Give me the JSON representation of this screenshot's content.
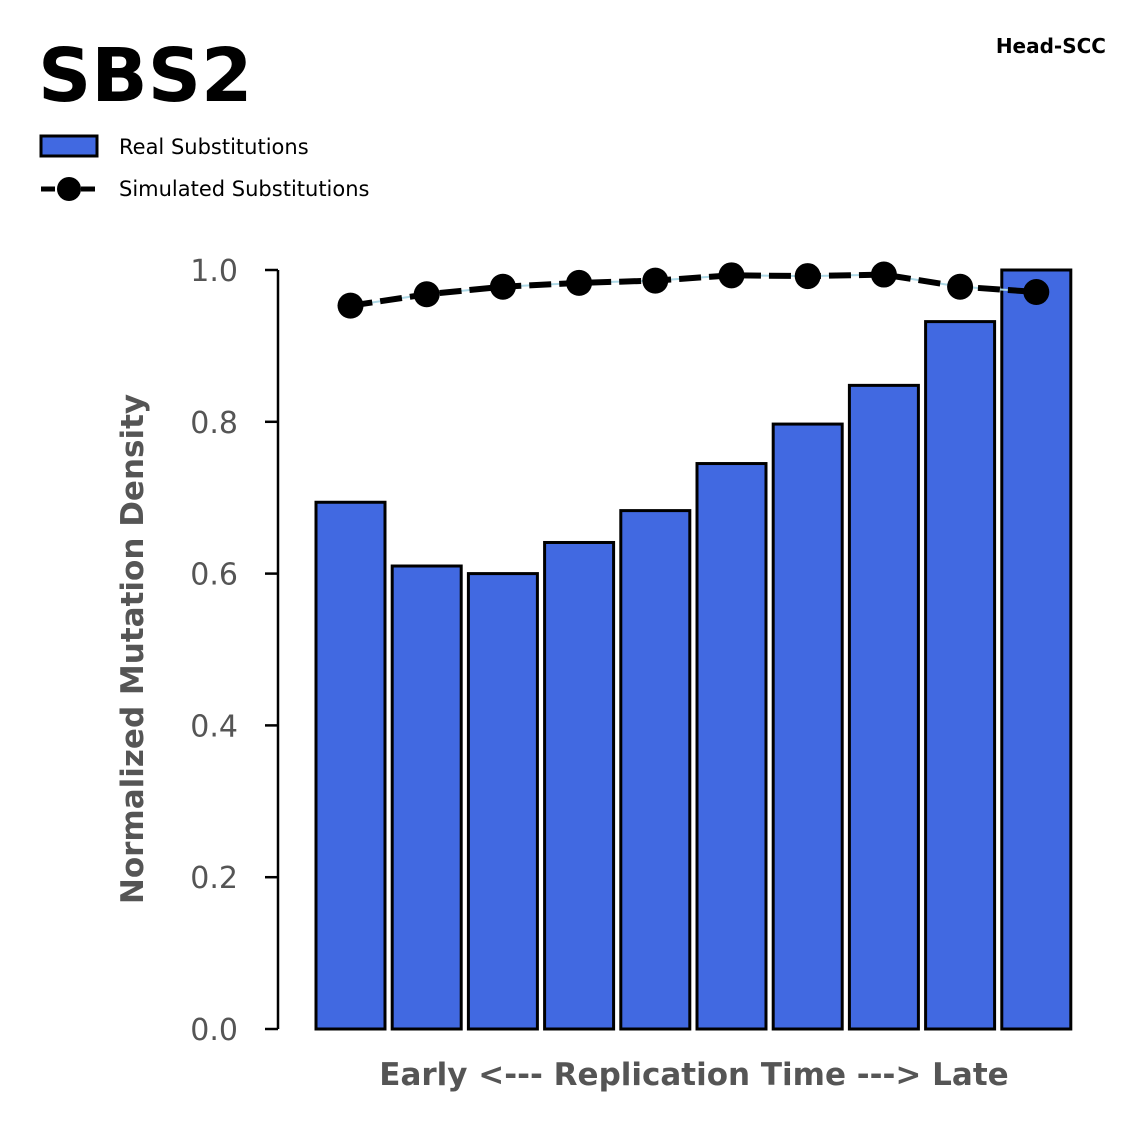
{
  "chart_data": {
    "type": "bar",
    "title": "SBS2",
    "subtitle": "Head-SCC",
    "xlabel": "Early <--- Replication Time ---> Late",
    "ylabel": "Normalized Mutation Density",
    "ylim": [
      0,
      1.0
    ],
    "yticks": [
      "0.0",
      "0.2",
      "0.4",
      "0.6",
      "0.8",
      "1.0"
    ],
    "grid": false,
    "legend_position": "top-left",
    "series": [
      {
        "name": "Real Substitutions",
        "kind": "bar",
        "color": "#4169e1",
        "values": [
          0.694,
          0.61,
          0.6,
          0.641,
          0.683,
          0.745,
          0.797,
          0.848,
          0.932,
          1.0
        ]
      },
      {
        "name": "Simulated Substitutions",
        "kind": "line",
        "color": "#000000",
        "values": [
          0.953,
          0.968,
          0.978,
          0.983,
          0.986,
          0.993,
          0.992,
          0.994,
          0.978,
          0.971
        ]
      }
    ]
  }
}
